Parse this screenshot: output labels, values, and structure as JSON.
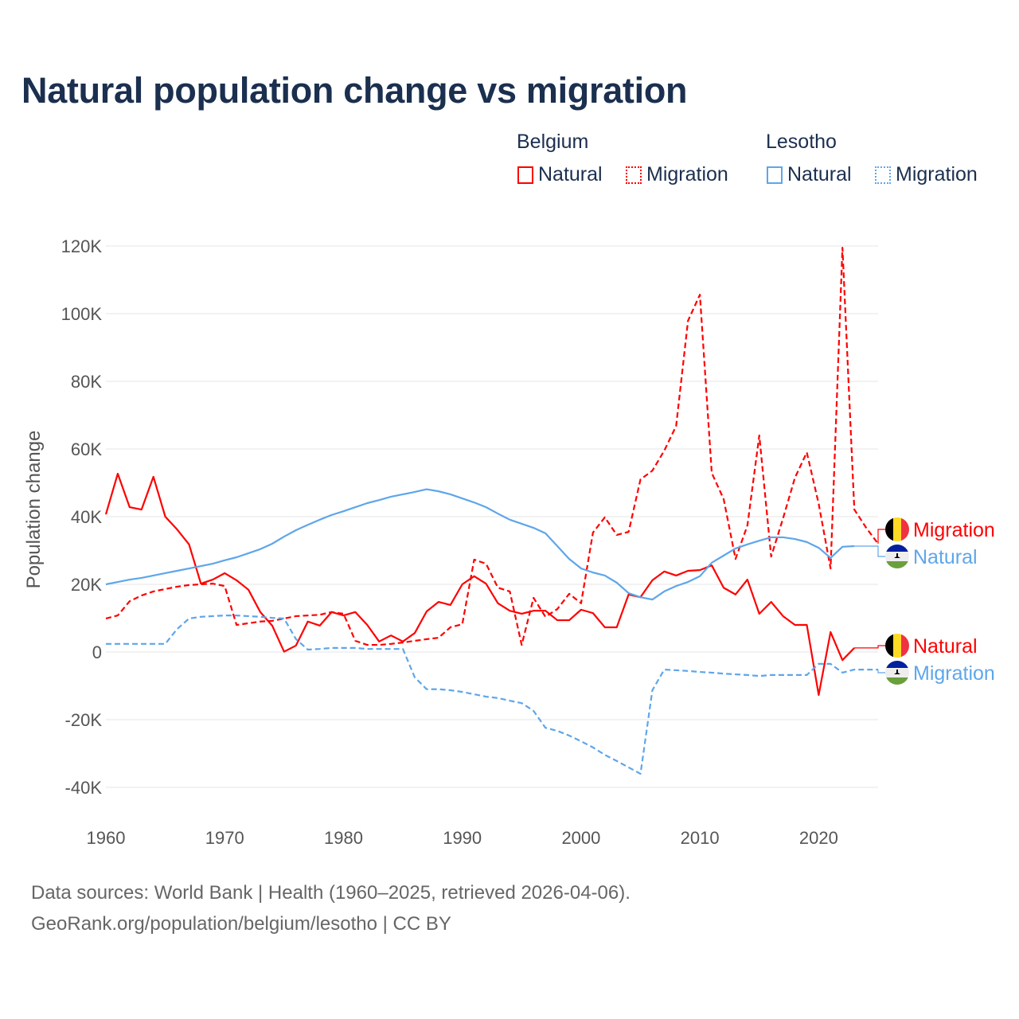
{
  "title": "Natural population change vs migration",
  "legend": {
    "groups": [
      {
        "country": "Belgium",
        "items": [
          "Natural",
          "Migration"
        ],
        "color": "#ff0000"
      },
      {
        "country": "Lesotho",
        "items": [
          "Natural",
          "Migration"
        ],
        "color": "#5ea6ea"
      }
    ]
  },
  "footer": {
    "line1": "Data sources: World Bank | Health (1960–2025, retrieved 2026-04-06).",
    "line2": "GeoRank.org/population/belgium/lesotho | CC BY"
  },
  "chart_data": {
    "type": "line",
    "title": "Natural population change vs migration",
    "xlabel": "",
    "ylabel": "Population change",
    "xlim": [
      1960,
      2025
    ],
    "ylim": [
      -40000,
      120000
    ],
    "x_ticks": [
      1960,
      1970,
      1980,
      1990,
      2000,
      2010,
      2020
    ],
    "x_tick_labels": [
      "1960",
      "1970",
      "1980",
      "1990",
      "2000",
      "2010",
      "2020"
    ],
    "y_ticks": [
      -40000,
      -20000,
      0,
      20000,
      40000,
      60000,
      80000,
      100000,
      120000
    ],
    "y_tick_labels": [
      "-40K",
      "-20K",
      "0",
      "20K",
      "40K",
      "60K",
      "80K",
      "100K",
      "120K"
    ],
    "grid": true,
    "legend_position": "top-right",
    "start_year": 1960,
    "series": [
      {
        "name": "Belgium Natural",
        "label": "Natural",
        "color": "#ff0000",
        "dashed": false,
        "values_k": [
          40.7,
          52.7,
          42.8,
          42.1,
          51.8,
          40,
          36.2,
          31.8,
          20.2,
          21.4,
          23.3,
          21.2,
          18.4,
          11.8,
          7.8,
          0.1,
          1.9,
          9,
          7.8,
          11.8,
          10.8,
          11.8,
          8,
          3.1,
          4.9,
          3.1,
          5.6,
          12,
          14.8,
          13.9,
          20,
          22.4,
          20.2,
          14.4,
          12.2,
          11.3,
          12.2,
          12.2,
          9.4,
          9.4,
          12.5,
          11.5,
          7.3,
          7.3,
          17,
          16.2,
          21.2,
          23.8,
          22.6,
          24,
          24.2,
          25.6,
          19,
          17,
          21.4,
          11.3,
          14.8,
          10.6,
          8,
          8,
          -12.7,
          5.9,
          -2.4,
          1.2
        ]
      },
      {
        "name": "Belgium Migration",
        "label": "Migration",
        "color": "#ff0000",
        "dashed": true,
        "values_k": [
          9.9,
          10.8,
          15,
          16.7,
          17.9,
          18.6,
          19.3,
          19.8,
          20,
          20.2,
          19.5,
          8,
          8.5,
          9,
          9.2,
          9.9,
          10.6,
          10.8,
          11,
          11.8,
          11.3,
          3.3,
          2.1,
          2.1,
          2.4,
          2.8,
          3.3,
          3.8,
          4.2,
          7.3,
          8.2,
          27.3,
          26.1,
          19,
          17.9,
          2.1,
          16,
          10.4,
          12.7,
          17.2,
          14.4,
          35.3,
          39.8,
          34.6,
          35.5,
          51,
          53.6,
          59.5,
          66.8,
          97.9,
          105.6,
          52.9,
          45.2,
          27.5,
          37.4,
          64,
          28.2,
          39.5,
          51.5,
          59,
          43.8,
          24.7,
          119.5,
          42.1,
          36.7,
          32
        ]
      },
      {
        "name": "Lesotho Natural",
        "label": "Natural",
        "color": "#5ea6ea",
        "dashed": false,
        "values_k": [
          20,
          20.7,
          21.4,
          21.9,
          22.6,
          23.3,
          24,
          24.7,
          25.4,
          26.1,
          27.1,
          28,
          29.2,
          30.4,
          32,
          34.1,
          36,
          37.6,
          39.1,
          40.5,
          41.6,
          42.8,
          44,
          44.9,
          45.9,
          46.6,
          47.3,
          48.1,
          47.5,
          46.6,
          45.4,
          44.2,
          42.8,
          40.9,
          39.1,
          37.9,
          36.7,
          35.1,
          31.3,
          27.5,
          24.7,
          23.5,
          22.6,
          20.5,
          17.4,
          16.2,
          15.5,
          17.9,
          19.5,
          20.7,
          22.4,
          26.4,
          28.5,
          30.6,
          31.8,
          32.9,
          33.9,
          33.9,
          33.4,
          32.5,
          30.8,
          27.8,
          31.1,
          31.3
        ]
      },
      {
        "name": "Lesotho Migration",
        "label": "Migration",
        "color": "#5ea6ea",
        "dashed": true,
        "values_k": [
          2.4,
          2.4,
          2.4,
          2.4,
          2.4,
          2.4,
          6.8,
          9.9,
          10.4,
          10.6,
          10.8,
          10.8,
          10.6,
          10.4,
          10.1,
          9.9,
          3.8,
          0.7,
          0.9,
          1.2,
          1.2,
          1.2,
          0.9,
          0.9,
          0.9,
          0.9,
          -7.5,
          -11,
          -11,
          -11.3,
          -11.8,
          -12.5,
          -13.2,
          -13.6,
          -14.4,
          -15.1,
          -17.4,
          -22.4,
          -23.3,
          -24.7,
          -26.4,
          -28.2,
          -30.4,
          -32.2,
          -34.1,
          -36,
          -11.3,
          -5.2,
          -5.4,
          -5.6,
          -5.9,
          -6.1,
          -6.4,
          -6.6,
          -6.8,
          -7.1,
          -6.8,
          -6.8,
          -6.8,
          -6.8,
          -3.5,
          -3.5,
          -6.1,
          -5.2,
          -5.2,
          -5.2
        ]
      }
    ]
  }
}
